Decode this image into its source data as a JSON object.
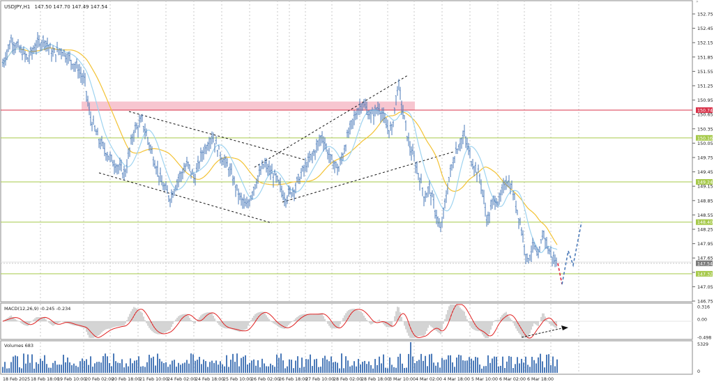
{
  "header": {
    "symbol_label": "USDJPY,H1",
    "ohlc_label": "147.50 147.70 147.49 147.54"
  },
  "price_axis": {
    "ticks": [
      "152.75",
      "152.45",
      "152.15",
      "151.85",
      "151.55",
      "151.25",
      "150.95",
      "150.65",
      "150.35",
      "150.05",
      "149.75",
      "149.45",
      "149.15",
      "148.85",
      "148.55",
      "148.25",
      "147.95",
      "147.65",
      "147.35",
      "147.05",
      "146.75"
    ],
    "tick_values": [
      152.75,
      152.45,
      152.15,
      151.85,
      151.55,
      151.25,
      150.95,
      150.65,
      150.35,
      150.05,
      149.75,
      149.45,
      149.15,
      148.85,
      148.55,
      148.25,
      147.95,
      147.65,
      147.35,
      147.05,
      146.75
    ],
    "labels": {
      "resistance": "150.74",
      "level_150_16": "150.16",
      "level_149_24": "149.24",
      "level_148_40": "148.40",
      "current": "147.54",
      "level_147_32": "147.32"
    }
  },
  "levels": {
    "resistance_zone": [
      150.74,
      150.92
    ],
    "resistance_line": 150.74,
    "green_lines": [
      150.16,
      149.24,
      148.4,
      147.32
    ],
    "current_price": 147.54,
    "colors": {
      "resistance": "#d9334a",
      "zone": "#f7c6d0",
      "green": "#a6c94a",
      "current": "#b0b0b0"
    }
  },
  "price_series": {
    "color_bars": "#4a79b8",
    "color_ma_slow": "#f3c233",
    "color_ma_fast": "#9ed3f0",
    "points": [
      [
        151.7,
        0
      ],
      [
        152.2,
        12
      ],
      [
        152.0,
        24
      ],
      [
        151.8,
        36
      ],
      [
        152.1,
        48
      ],
      [
        152.2,
        60
      ],
      [
        151.9,
        72
      ],
      [
        152.0,
        84
      ],
      [
        151.8,
        96
      ],
      [
        151.6,
        108
      ],
      [
        151.3,
        118
      ],
      [
        150.6,
        125
      ],
      [
        150.1,
        138
      ],
      [
        149.7,
        155
      ],
      [
        149.4,
        175
      ],
      [
        150.3,
        188
      ],
      [
        150.5,
        200
      ],
      [
        149.8,
        215
      ],
      [
        149.2,
        228
      ],
      [
        148.9,
        240
      ],
      [
        149.3,
        252
      ],
      [
        149.6,
        265
      ],
      [
        149.3,
        275
      ],
      [
        149.8,
        285
      ],
      [
        150.2,
        300
      ],
      [
        149.8,
        312
      ],
      [
        149.5,
        325
      ],
      [
        148.9,
        340
      ],
      [
        148.7,
        350
      ],
      [
        149.2,
        362
      ],
      [
        149.6,
        375
      ],
      [
        149.3,
        392
      ],
      [
        148.9,
        405
      ],
      [
        149.1,
        418
      ],
      [
        149.5,
        432
      ],
      [
        149.8,
        445
      ],
      [
        150.2,
        458
      ],
      [
        149.7,
        470
      ],
      [
        149.5,
        482
      ],
      [
        150.2,
        495
      ],
      [
        150.6,
        505
      ],
      [
        150.9,
        515
      ],
      [
        150.6,
        528
      ],
      [
        150.8,
        540
      ],
      [
        150.4,
        550
      ],
      [
        150.3,
        558
      ],
      [
        151.3,
        567
      ],
      [
        150.6,
        575
      ],
      [
        150.0,
        583
      ],
      [
        149.7,
        590
      ],
      [
        149.3,
        598
      ],
      [
        148.9,
        605
      ],
      [
        149.1,
        612
      ],
      [
        148.2,
        628
      ],
      [
        149.3,
        640
      ],
      [
        149.9,
        650
      ],
      [
        150.2,
        662
      ],
      [
        149.7,
        672
      ],
      [
        149.3,
        685
      ],
      [
        148.4,
        695
      ],
      [
        148.9,
        705
      ],
      [
        148.8,
        712
      ],
      [
        149.3,
        722
      ],
      [
        149.1,
        730
      ],
      [
        148.4,
        742
      ],
      [
        147.6,
        752
      ],
      [
        147.9,
        762
      ],
      [
        147.6,
        768
      ],
      [
        148.2,
        775
      ],
      [
        147.8,
        783
      ],
      [
        147.5,
        795
      ]
    ],
    "forecast": [
      147.54,
      147.1,
      147.8,
      147.5,
      148.4
    ]
  },
  "macd": {
    "label": "MACD(12,26,9) -0.245 -0.234",
    "ticks": [
      "0.316",
      "0.00",
      "-0.498"
    ],
    "signal_color": "#e02020"
  },
  "volume": {
    "label": "Volumes 683",
    "ticks": [
      "5329",
      "0"
    ]
  },
  "time_axis": {
    "labels": [
      "18 Feb 2025",
      "18 Feb 18:00",
      "19 Feb 10:00",
      "20 Feb 02:00",
      "20 Feb 18:00",
      "21 Feb 10:00",
      "24 Feb 02:00",
      "24 Feb 18:00",
      "25 Feb 10:00",
      "26 Feb 02:00",
      "26 Feb 18:00",
      "27 Feb 10:00",
      "28 Feb 02:00",
      "28 Feb 18:00",
      "3 Mar 10:00",
      "4 Mar 02:00",
      "4 Mar 18:00",
      "5 Mar 10:00",
      "6 Mar 02:00",
      "6 Mar 18:00"
    ]
  }
}
